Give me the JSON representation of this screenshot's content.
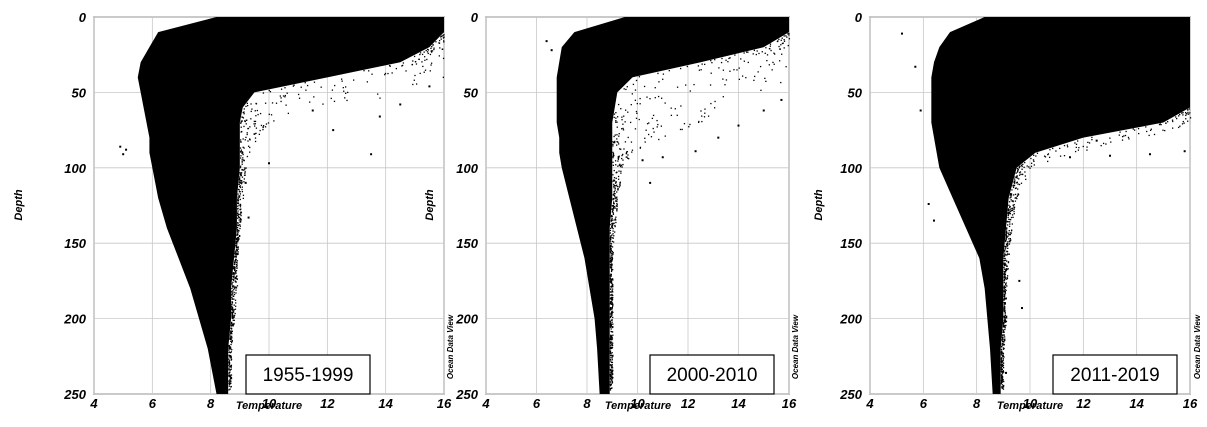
{
  "chart_data": [
    {
      "type": "scatter",
      "period_label": "1955-1999",
      "xlabel": "Temperature",
      "ylabel": "Depth",
      "credit": "Ocean Data View",
      "xlim": [
        4,
        16
      ],
      "ylim": [
        250,
        0
      ],
      "xticks": [
        4,
        6,
        8,
        10,
        12,
        14,
        16
      ],
      "yticks": [
        0,
        50,
        100,
        150,
        200,
        250
      ],
      "grid": true,
      "profile_envelope": {
        "depth": [
          0,
          10,
          20,
          30,
          40,
          50,
          60,
          70,
          80,
          90,
          100,
          120,
          140,
          160,
          180,
          200,
          220,
          250
        ],
        "temp_min": [
          8.2,
          6.2,
          5.9,
          5.6,
          5.5,
          5.6,
          5.7,
          5.8,
          5.9,
          5.9,
          6.0,
          6.2,
          6.5,
          6.9,
          7.3,
          7.6,
          7.9,
          8.2
        ],
        "temp_core": [
          16,
          16,
          15.5,
          14.5,
          12.0,
          9.5,
          9.1,
          9.0,
          9.0,
          9.0,
          9.0,
          8.9,
          8.9,
          8.8,
          8.7,
          8.7,
          8.6,
          8.6
        ],
        "temp_max": [
          16,
          16,
          16,
          16,
          16,
          15.5,
          11.0,
          10.0,
          9.6,
          9.3,
          9.2,
          9.1,
          9.0,
          8.9,
          8.9,
          8.8,
          8.7,
          8.7
        ]
      },
      "outliers": [
        [
          4.9,
          86
        ],
        [
          5.1,
          88
        ],
        [
          5.0,
          91
        ],
        [
          10.0,
          97
        ],
        [
          13.5,
          91
        ],
        [
          12.2,
          75
        ],
        [
          11.5,
          62
        ],
        [
          13.8,
          66
        ],
        [
          14.5,
          58
        ],
        [
          15.5,
          46
        ],
        [
          9.3,
          133
        ],
        [
          9.2,
          110
        ]
      ]
    },
    {
      "type": "scatter",
      "period_label": "2000-2010",
      "xlabel": "Temperature",
      "ylabel": "Depth",
      "credit": "Ocean Data View",
      "xlim": [
        4,
        16
      ],
      "ylim": [
        250,
        0
      ],
      "xticks": [
        4,
        6,
        8,
        10,
        12,
        14,
        16
      ],
      "yticks": [
        0,
        50,
        100,
        150,
        200,
        250
      ],
      "grid": true,
      "profile_envelope": {
        "depth": [
          0,
          10,
          20,
          30,
          40,
          50,
          60,
          70,
          80,
          90,
          100,
          120,
          140,
          160,
          180,
          200,
          220,
          250
        ],
        "temp_min": [
          9.5,
          7.5,
          7.0,
          6.9,
          6.8,
          6.8,
          6.8,
          6.8,
          6.9,
          6.9,
          7.0,
          7.3,
          7.6,
          7.9,
          8.1,
          8.3,
          8.4,
          8.5
        ],
        "temp_core": [
          16,
          16,
          15.0,
          12.5,
          9.8,
          9.2,
          9.1,
          9.0,
          9.0,
          9.0,
          9.0,
          9.0,
          8.9,
          8.9,
          8.9,
          8.9,
          8.9,
          8.9
        ],
        "temp_max": [
          16,
          16,
          16,
          16,
          16,
          15.0,
          14.0,
          12.5,
          11.0,
          9.8,
          9.4,
          9.2,
          9.1,
          9.0,
          9.0,
          9.0,
          9.0,
          9.0
        ]
      },
      "outliers": [
        [
          6.4,
          16
        ],
        [
          6.6,
          22
        ],
        [
          11.0,
          93
        ],
        [
          10.5,
          110
        ],
        [
          12.3,
          89
        ],
        [
          13.2,
          80
        ],
        [
          14.0,
          72
        ],
        [
          15.0,
          62
        ],
        [
          15.7,
          55
        ],
        [
          10.2,
          95
        ]
      ]
    },
    {
      "type": "scatter",
      "period_label": "2011-2019",
      "xlabel": "Temperature",
      "ylabel": "Depth",
      "credit": "Ocean Data View",
      "xlim": [
        4,
        16
      ],
      "ylim": [
        250,
        0
      ],
      "xticks": [
        4,
        6,
        8,
        10,
        12,
        14,
        16
      ],
      "yticks": [
        0,
        50,
        100,
        150,
        200,
        250
      ],
      "grid": true,
      "profile_envelope": {
        "depth": [
          0,
          10,
          20,
          30,
          40,
          50,
          60,
          70,
          80,
          90,
          100,
          120,
          140,
          160,
          180,
          200,
          220,
          250
        ],
        "temp_min": [
          8.3,
          7.0,
          6.6,
          6.4,
          6.3,
          6.3,
          6.3,
          6.3,
          6.4,
          6.5,
          6.6,
          7.1,
          7.6,
          8.1,
          8.3,
          8.4,
          8.5,
          8.6
        ],
        "temp_core": [
          16,
          16,
          16,
          16,
          16,
          16,
          16,
          15.0,
          12.0,
          10.2,
          9.5,
          9.2,
          9.1,
          9.0,
          9.0,
          9.0,
          8.9,
          8.9
        ],
        "temp_max": [
          16,
          16,
          16,
          16,
          16,
          16,
          16,
          16,
          14.5,
          11.5,
          10.0,
          9.5,
          9.3,
          9.2,
          9.1,
          9.1,
          9.0,
          9.0
        ]
      },
      "outliers": [
        [
          5.2,
          11
        ],
        [
          5.7,
          33
        ],
        [
          5.9,
          62
        ],
        [
          6.2,
          124
        ],
        [
          6.4,
          135
        ],
        [
          11.5,
          93
        ],
        [
          13.0,
          92
        ],
        [
          14.5,
          91
        ],
        [
          15.8,
          89
        ],
        [
          9.6,
          175
        ],
        [
          9.7,
          193
        ],
        [
          9.1,
          236
        ],
        [
          10.7,
          84
        ],
        [
          12.5,
          82
        ]
      ]
    }
  ]
}
